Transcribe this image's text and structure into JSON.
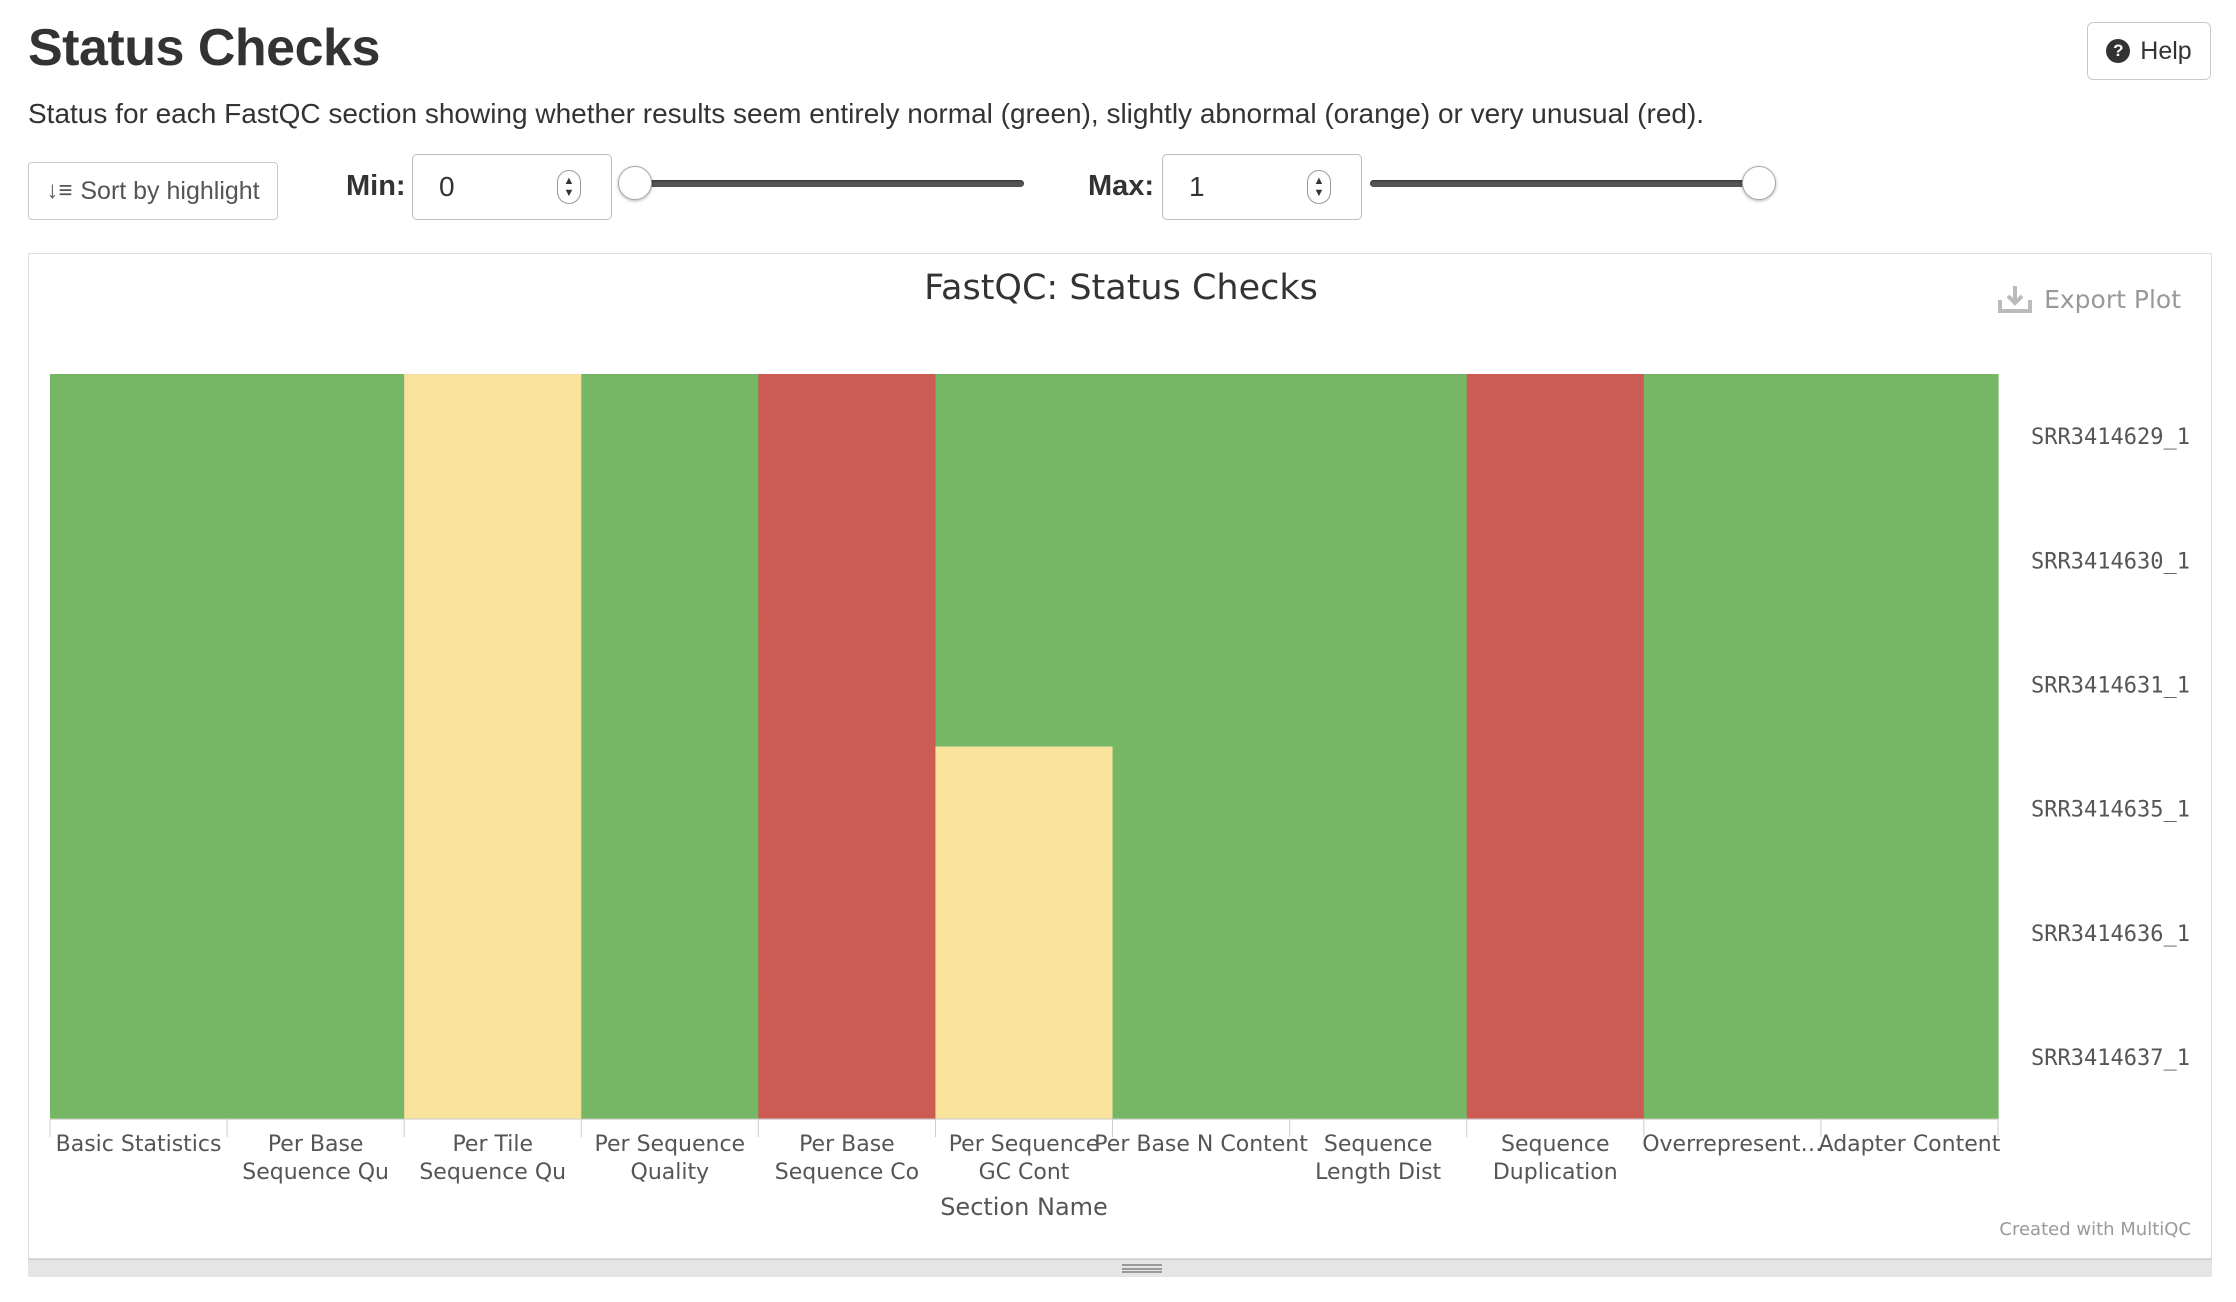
{
  "header": {
    "title": "Status Checks",
    "help_label": "Help",
    "help_icon": "question-circle-icon"
  },
  "description": "Status for each FastQC section showing whether results seem entirely normal (green), slightly abnormal (orange) or very unusual (red).",
  "controls": {
    "sort_label": "Sort by highlight",
    "sort_icon": "sort-amount-icon",
    "min_label": "Min:",
    "min_value": "0",
    "max_label": "Max:",
    "max_value": "1",
    "min_slider_value": 0,
    "max_slider_value": 1
  },
  "plot": {
    "export_label": "Export Plot",
    "export_icon": "download-icon",
    "credit": "Created with MultiQC"
  },
  "chart_data": {
    "type": "heatmap",
    "title": "FastQC: Status Checks",
    "xlabel": "Section Name",
    "x_categories": [
      "Basic Statistics",
      "Per Base Sequence Qu",
      "Per Tile Sequence Qu",
      "Per Sequence Quality",
      "Per Base Sequence Co",
      "Per Sequence GC Cont",
      "Per Base N Content",
      "Sequence Length Dist",
      "Sequence Duplication",
      "Overrepresent…",
      "Adapter Content"
    ],
    "y_categories": [
      "SRR3414629_1",
      "SRR3414630_1",
      "SRR3414631_1",
      "SRR3414635_1",
      "SRR3414636_1",
      "SRR3414637_1"
    ],
    "status_values": {
      "pass": 1,
      "warn": 0.5,
      "fail": 0.25
    },
    "status_colors": {
      "pass": "#76b766",
      "warn": "#f8e29c",
      "fail": "#cb5b53"
    },
    "values": [
      [
        1,
        1,
        0.5,
        1,
        0.25,
        1,
        1,
        1,
        0.25,
        1,
        1
      ],
      [
        1,
        1,
        0.5,
        1,
        0.25,
        1,
        1,
        1,
        0.25,
        1,
        1
      ],
      [
        1,
        1,
        0.5,
        1,
        0.25,
        1,
        1,
        1,
        0.25,
        1,
        1
      ],
      [
        1,
        1,
        0.5,
        1,
        0.25,
        0.5,
        1,
        1,
        0.25,
        1,
        1
      ],
      [
        1,
        1,
        0.5,
        1,
        0.25,
        0.5,
        1,
        1,
        0.25,
        1,
        1
      ],
      [
        1,
        1,
        0.5,
        1,
        0.25,
        0.5,
        1,
        1,
        0.25,
        1,
        1
      ]
    ],
    "yaxis_position": "right",
    "legend": "none",
    "grid": false
  }
}
